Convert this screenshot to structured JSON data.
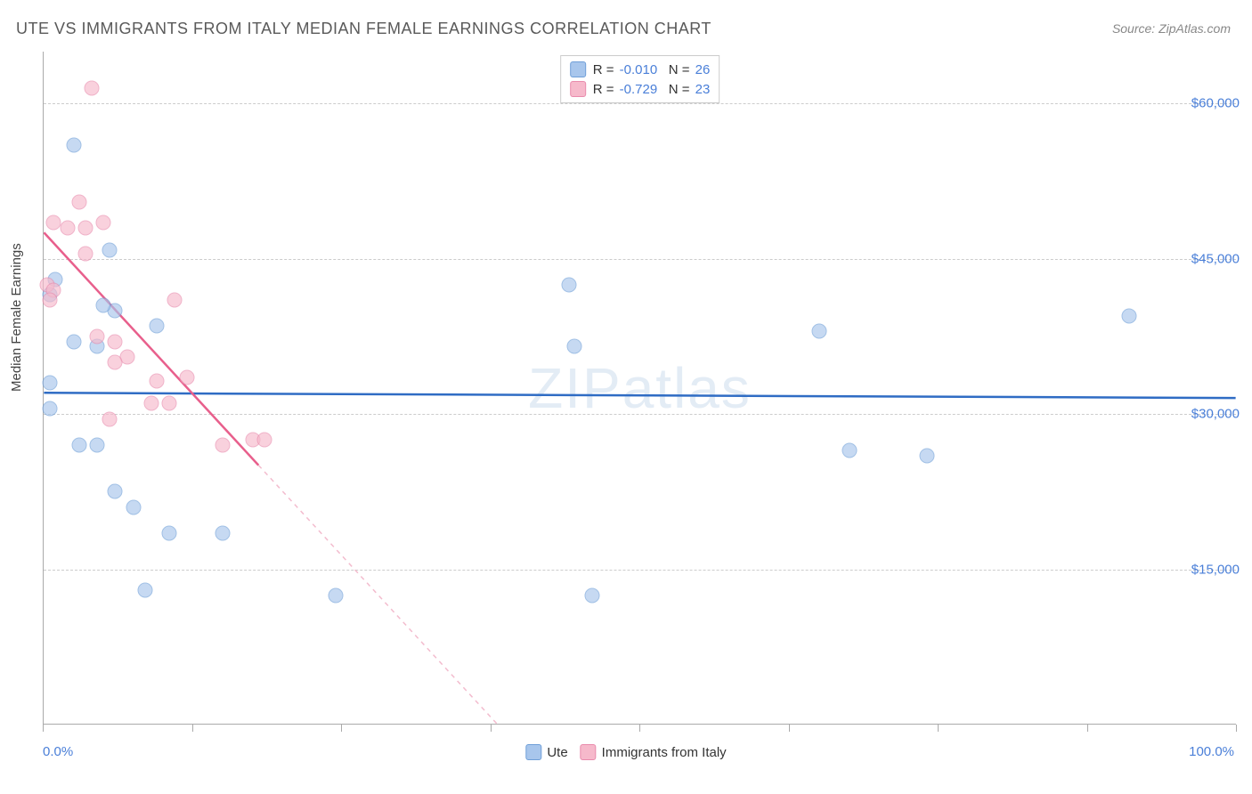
{
  "title": "UTE VS IMMIGRANTS FROM ITALY MEDIAN FEMALE EARNINGS CORRELATION CHART",
  "source": "Source: ZipAtlas.com",
  "yaxis_title": "Median Female Earnings",
  "watermark": "ZIPatlas",
  "chart": {
    "type": "scatter",
    "xlim": [
      0,
      100
    ],
    "ylim": [
      0,
      65000
    ],
    "xtick_positions": [
      0,
      12.5,
      25,
      37.5,
      50,
      62.5,
      75,
      87.5,
      100
    ],
    "xtick_labels": {
      "start": "0.0%",
      "end": "100.0%"
    },
    "ytick_positions": [
      15000,
      30000,
      45000,
      60000
    ],
    "ytick_labels": [
      "$15,000",
      "$30,000",
      "$45,000",
      "$60,000"
    ],
    "grid_color": "#cccccc",
    "background_color": "#ffffff",
    "axis_color": "#aaaaaa",
    "tick_label_color": "#4a7fd8",
    "marker_radius": 8.5,
    "marker_opacity": 0.65,
    "series": [
      {
        "name": "Ute",
        "fill_color": "#a8c6ec",
        "stroke_color": "#6f9fd8",
        "R": "-0.010",
        "N": "26",
        "regression": {
          "x1": 0,
          "y1": 32000,
          "x2": 100,
          "y2": 31500,
          "color": "#2f6cc4",
          "width": 2.5,
          "dash": "none"
        },
        "points": [
          {
            "x": 2.5,
            "y": 56000
          },
          {
            "x": 1.0,
            "y": 43000
          },
          {
            "x": 0.5,
            "y": 41500
          },
          {
            "x": 5.5,
            "y": 45800
          },
          {
            "x": 2.5,
            "y": 37000
          },
          {
            "x": 4.5,
            "y": 36500
          },
          {
            "x": 6.0,
            "y": 40000
          },
          {
            "x": 9.5,
            "y": 38500
          },
          {
            "x": 0.5,
            "y": 33000
          },
          {
            "x": 0.5,
            "y": 30500
          },
          {
            "x": 3.0,
            "y": 27000
          },
          {
            "x": 4.5,
            "y": 27000
          },
          {
            "x": 6.0,
            "y": 22500
          },
          {
            "x": 7.5,
            "y": 21000
          },
          {
            "x": 10.5,
            "y": 18500
          },
          {
            "x": 15.0,
            "y": 18500
          },
          {
            "x": 8.5,
            "y": 13000
          },
          {
            "x": 24.5,
            "y": 12500
          },
          {
            "x": 44.0,
            "y": 42500
          },
          {
            "x": 44.5,
            "y": 36500
          },
          {
            "x": 46.0,
            "y": 12500
          },
          {
            "x": 65.0,
            "y": 38000
          },
          {
            "x": 67.5,
            "y": 26500
          },
          {
            "x": 74.0,
            "y": 26000
          },
          {
            "x": 91.0,
            "y": 39500
          },
          {
            "x": 5.0,
            "y": 40500
          }
        ]
      },
      {
        "name": "Immigrants from Italy",
        "fill_color": "#f6b9cb",
        "stroke_color": "#e98bad",
        "R": "-0.729",
        "N": "23",
        "regression": {
          "x1": 0,
          "y1": 47500,
          "x2": 38,
          "y2": 0,
          "color": "#e85f8c",
          "width": 2.5,
          "dash": "none",
          "extrapolate_dash": {
            "x1": 18,
            "y1": 25000,
            "x2": 38,
            "y2": 0,
            "color": "#f3bcce",
            "width": 1.5,
            "dash": "5,5"
          }
        },
        "points": [
          {
            "x": 4.0,
            "y": 61500
          },
          {
            "x": 3.0,
            "y": 50500
          },
          {
            "x": 0.8,
            "y": 48500
          },
          {
            "x": 2.0,
            "y": 48000
          },
          {
            "x": 3.5,
            "y": 48000
          },
          {
            "x": 5.0,
            "y": 48500
          },
          {
            "x": 3.5,
            "y": 45500
          },
          {
            "x": 0.3,
            "y": 42500
          },
          {
            "x": 0.8,
            "y": 42000
          },
          {
            "x": 0.5,
            "y": 41000
          },
          {
            "x": 4.5,
            "y": 37500
          },
          {
            "x": 6.0,
            "y": 37000
          },
          {
            "x": 7.0,
            "y": 35500
          },
          {
            "x": 6.0,
            "y": 35000
          },
          {
            "x": 11.0,
            "y": 41000
          },
          {
            "x": 9.5,
            "y": 33200
          },
          {
            "x": 9.0,
            "y": 31000
          },
          {
            "x": 10.5,
            "y": 31000
          },
          {
            "x": 5.5,
            "y": 29500
          },
          {
            "x": 15.0,
            "y": 27000
          },
          {
            "x": 17.5,
            "y": 27500
          },
          {
            "x": 18.5,
            "y": 27500
          },
          {
            "x": 12.0,
            "y": 33500
          }
        ]
      }
    ]
  },
  "legend_top": {
    "r_label": "R =",
    "n_label": "N ="
  },
  "legend_bottom": {
    "items": [
      "Ute",
      "Immigrants from Italy"
    ]
  }
}
